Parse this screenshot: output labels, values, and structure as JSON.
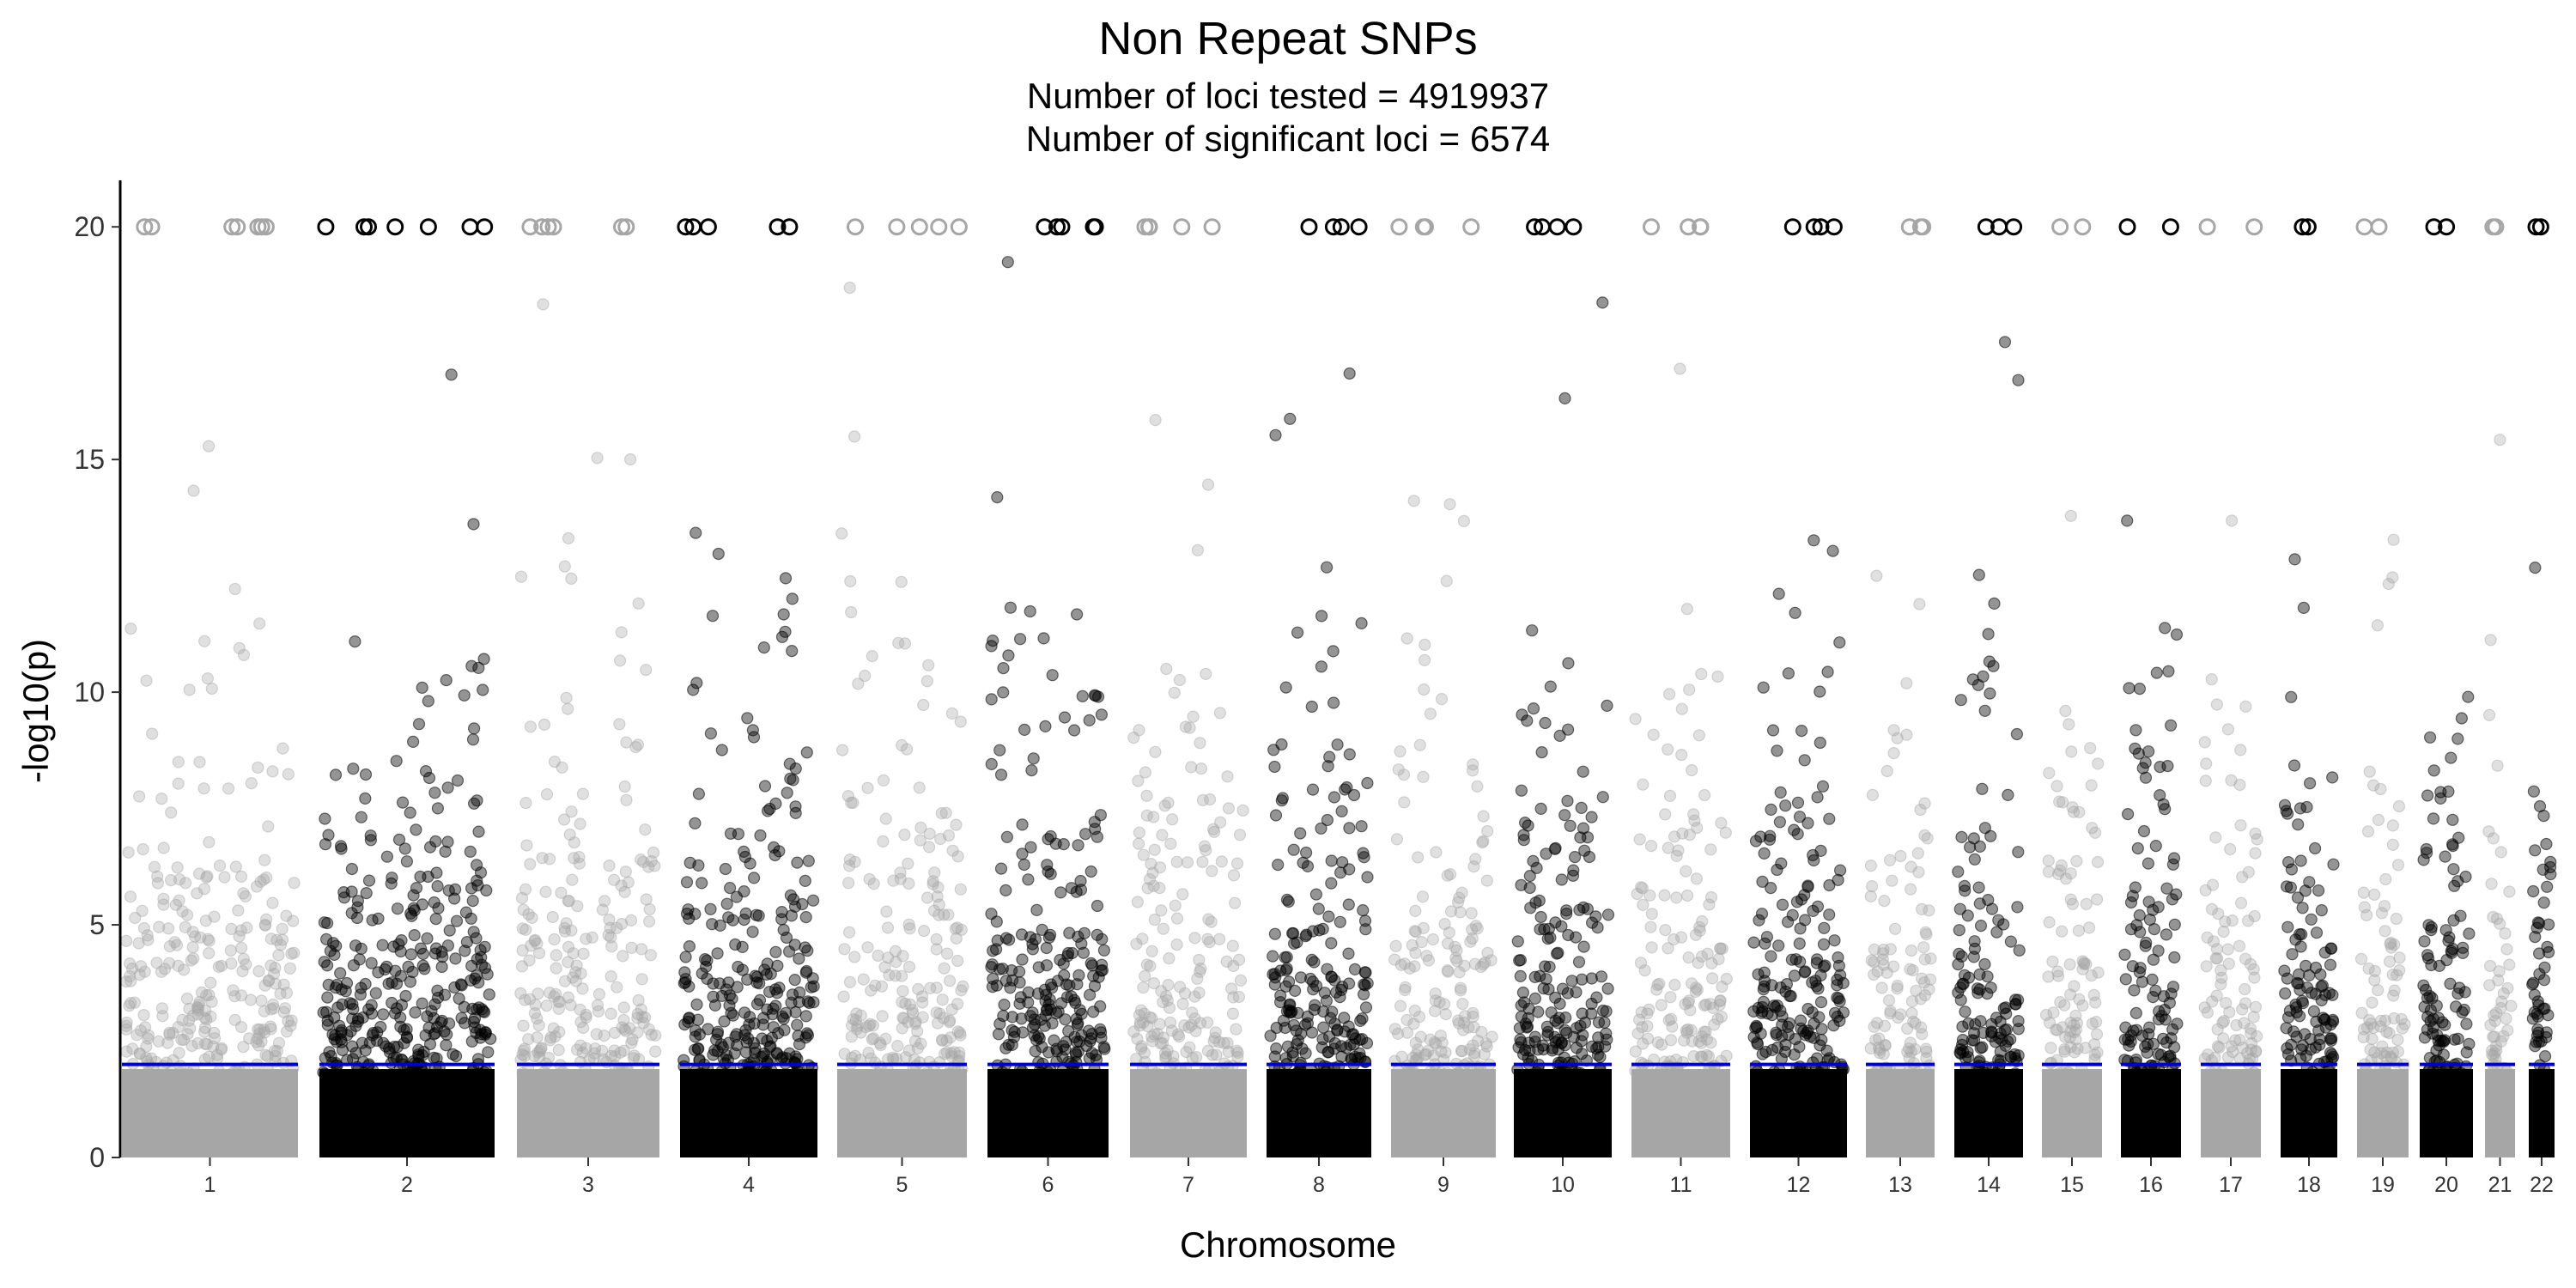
{
  "chart_data": {
    "type": "scatter",
    "subtype": "manhattan",
    "title": "Non Repeat SNPs",
    "subtitle_lines": [
      "Number of loci tested = 4919937",
      "Number of significant loci = 6574"
    ],
    "xlabel": "Chromosome",
    "ylabel": "-log10(p)",
    "ylim": [
      0,
      21
    ],
    "y_ticks": [
      0,
      5,
      10,
      15,
      20
    ],
    "cap_value": 20,
    "threshold": 2,
    "threshold_color": "#0000cc",
    "grid": false,
    "legend": "none",
    "colors": {
      "odd_chromosomes": "#a6a6a6",
      "even_chromosomes": "#000000",
      "capped_marker_odd": "#a6a6a6",
      "capped_marker_even": "#000000"
    },
    "chromosomes": [
      {
        "label": "1",
        "max_value": 20
      },
      {
        "label": "2",
        "max_value": 20
      },
      {
        "label": "3",
        "max_value": 20
      },
      {
        "label": "4",
        "max_value": 20
      },
      {
        "label": "5",
        "max_value": 20
      },
      {
        "label": "6",
        "max_value": 20
      },
      {
        "label": "7",
        "max_value": 20
      },
      {
        "label": "8",
        "max_value": 20
      },
      {
        "label": "9",
        "max_value": 20
      },
      {
        "label": "10",
        "max_value": 20
      },
      {
        "label": "11",
        "max_value": 20
      },
      {
        "label": "12",
        "max_value": 20
      },
      {
        "label": "13",
        "max_value": 20
      },
      {
        "label": "14",
        "max_value": 20
      },
      {
        "label": "15",
        "max_value": 20
      },
      {
        "label": "16",
        "max_value": 20
      },
      {
        "label": "17",
        "max_value": 20
      },
      {
        "label": "18",
        "max_value": 20
      },
      {
        "label": "19",
        "max_value": 20
      },
      {
        "label": "20",
        "max_value": 20
      },
      {
        "label": "21",
        "max_value": 20
      },
      {
        "label": "22",
        "max_value": 20
      }
    ]
  }
}
